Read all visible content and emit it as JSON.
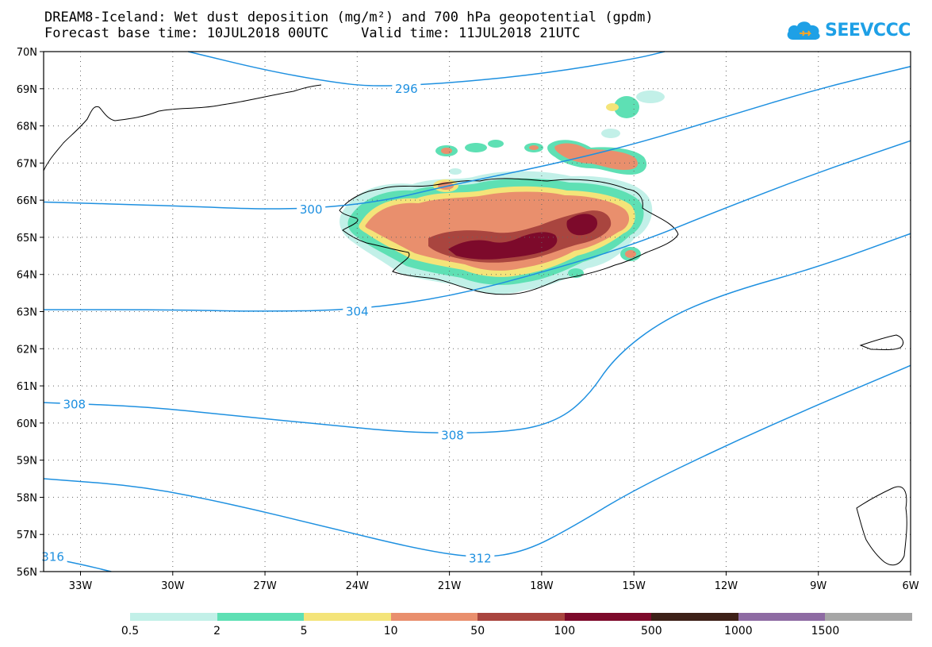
{
  "title": {
    "line1": "DREAM8-Iceland: Wet dust deposition (mg/m²) and 700 hPa geopotential (gpdm)",
    "line2": "Forecast base time: 10JUL2018 00UTC    Valid time: 11JUL2018 21UTC"
  },
  "logo": {
    "text": "SEEVCCC",
    "icon": "cloud-icon",
    "color": "#1ea0e6"
  },
  "map": {
    "projection": "lat-lon",
    "lon_range": [
      -34.2,
      -6
    ],
    "lat_range": [
      56,
      70
    ],
    "lat_labels": [
      "70N",
      "69N",
      "68N",
      "67N",
      "66N",
      "65N",
      "64N",
      "63N",
      "62N",
      "61N",
      "60N",
      "59N",
      "58N",
      "57N",
      "56N"
    ],
    "lon_labels": [
      "33W",
      "30W",
      "27W",
      "24W",
      "21W",
      "18W",
      "15W",
      "12W",
      "9W",
      "6W"
    ],
    "contour_color": "#1e90e0",
    "contours": [
      {
        "value": 296,
        "label": "296",
        "points": [
          [
            -29.5,
            70
          ],
          [
            -27,
            69.5
          ],
          [
            -25,
            69.2
          ],
          [
            -23.5,
            69.05
          ],
          [
            -21,
            69.15
          ],
          [
            -18,
            69.4
          ],
          [
            -15,
            69.8
          ],
          [
            -14,
            70
          ]
        ]
      },
      {
        "value": 300,
        "label": "300",
        "points": [
          [
            -34.2,
            65.95
          ],
          [
            -30,
            65.85
          ],
          [
            -27,
            65.75
          ],
          [
            -25,
            65.8
          ],
          [
            -23,
            66
          ],
          [
            -21,
            66.4
          ],
          [
            -18,
            66.9
          ],
          [
            -15,
            67.5
          ],
          [
            -12,
            68.25
          ],
          [
            -9,
            69
          ],
          [
            -6,
            69.6
          ]
        ]
      },
      {
        "value": 304,
        "label": "304",
        "points": [
          [
            -34.2,
            63.05
          ],
          [
            -30,
            63.05
          ],
          [
            -27,
            63
          ],
          [
            -24,
            63.05
          ],
          [
            -21,
            63.4
          ],
          [
            -18,
            64.05
          ],
          [
            -15,
            64.8
          ],
          [
            -12,
            65.8
          ],
          [
            -9,
            66.75
          ],
          [
            -6,
            67.6
          ]
        ]
      },
      {
        "value": 308,
        "label": "308",
        "points": [
          [
            -34.2,
            60.55
          ],
          [
            -31,
            60.45
          ],
          [
            -28,
            60.2
          ],
          [
            -25,
            59.95
          ],
          [
            -22,
            59.72
          ],
          [
            -19,
            59.75
          ],
          [
            -17.5,
            60.05
          ],
          [
            -16.5,
            60.7
          ],
          [
            -15.6,
            61.8
          ],
          [
            -14,
            62.8
          ],
          [
            -12,
            63.5
          ],
          [
            -9,
            64.2
          ],
          [
            -6,
            65.1
          ]
        ]
      },
      {
        "value": 312,
        "label": "312",
        "points": [
          [
            -34.2,
            58.5
          ],
          [
            -31,
            58.3
          ],
          [
            -28,
            57.8
          ],
          [
            -25,
            57.2
          ],
          [
            -22,
            56.6
          ],
          [
            -20,
            56.35
          ],
          [
            -18.5,
            56.55
          ],
          [
            -17,
            57.2
          ],
          [
            -15,
            58.2
          ],
          [
            -12,
            59.4
          ],
          [
            -9,
            60.5
          ],
          [
            -6,
            61.55
          ]
        ]
      },
      {
        "value": 316,
        "label": "316",
        "points": [
          [
            -34.2,
            56.4
          ],
          [
            -33,
            56.2
          ],
          [
            -32,
            56
          ]
        ]
      }
    ],
    "contour_labels": [
      {
        "label": "296",
        "lon": -22.4,
        "lat": 69.0
      },
      {
        "label": "300",
        "lon": -25.5,
        "lat": 65.75
      },
      {
        "label": "304",
        "lon": -24,
        "lat": 63.0
      },
      {
        "label": "308",
        "lon": -33.2,
        "lat": 60.5
      },
      {
        "label": "308",
        "lon": -20.9,
        "lat": 59.67
      },
      {
        "label": "312",
        "lon": -20,
        "lat": 56.35
      },
      {
        "label": "316",
        "lon": -33.9,
        "lat": 56.4
      }
    ]
  },
  "legend": {
    "colors": [
      "#c2f0e8",
      "#5ee0b4",
      "#f4e479",
      "#e98f6d",
      "#a9453f",
      "#7d0a2b",
      "#3d2017",
      "#8e6ba3",
      "#a6a6a6"
    ],
    "labels": [
      "0.5",
      "2",
      "5",
      "10",
      "50",
      "100",
      "500",
      "1000",
      "1500"
    ]
  }
}
